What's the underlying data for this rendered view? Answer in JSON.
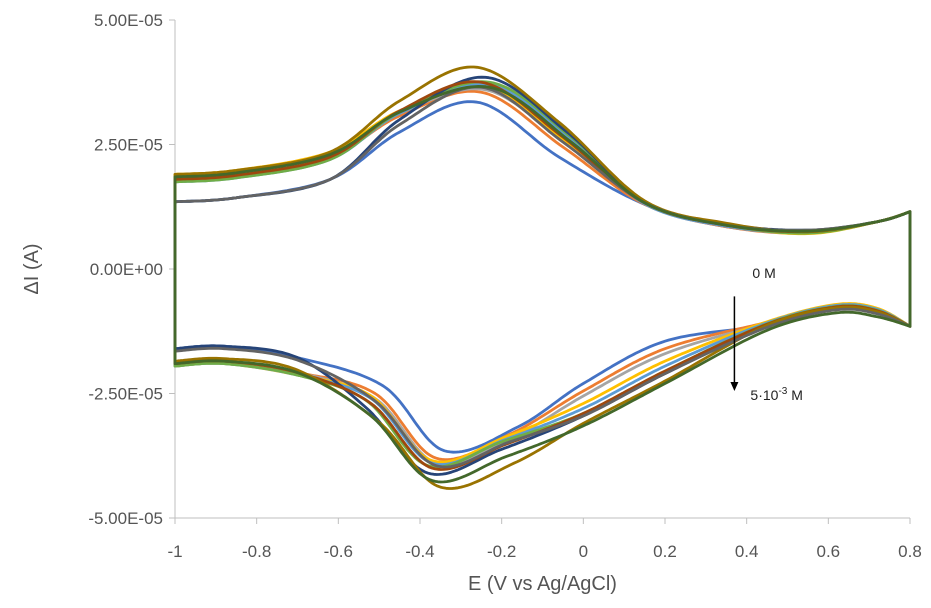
{
  "chart_data": {
    "type": "line",
    "xlabel": "E (V vs Ag/AgCl)",
    "ylabel": "ΔI (A)",
    "xlim": [
      -1,
      0.8
    ],
    "ylim": [
      -5e-05,
      5e-05
    ],
    "x_ticks": [
      -1,
      -0.8,
      -0.6,
      -0.4,
      -0.2,
      0,
      0.2,
      0.4,
      0.6,
      0.8
    ],
    "x_tick_labels": [
      "-1",
      "-0.8",
      "-0.6",
      "-0.4",
      "-0.2",
      "0",
      "0.2",
      "0.4",
      "0.6",
      "0.8"
    ],
    "y_ticks": [
      5e-05,
      2.5e-05,
      0,
      -2.5e-05,
      -5e-05
    ],
    "y_tick_labels": [
      "5.00E-05",
      "2.50E-05",
      "0.00E+00",
      "-2.50E-05",
      "-5.00E-05"
    ],
    "grid": false,
    "legend": "none",
    "annotations": {
      "start_label": "0 M",
      "end_label_base": "5·10",
      "end_label_exp": "-3",
      "end_label_unit": " M",
      "arrow_x": 0.37,
      "arrow_from_y": -5.5e-06,
      "arrow_to_y": -2.45e-05
    },
    "series": [
      {
        "color": "#4472C4",
        "ox_peak": [
          -0.26,
          3.35e-05
        ],
        "red_peak": [
          -0.34,
          -3.65e-05
        ],
        "start_upper": 1.35e-05,
        "start_lower": -1.6e-05,
        "upper_mid": [
          8.5e-06,
          7.5e-06
        ],
        "lower_mid": [
          -2.3e-05,
          -7.8e-06
        ]
      },
      {
        "color": "#ED7D31",
        "ox_peak": [
          -0.25,
          3.55e-05
        ],
        "red_peak": [
          -0.36,
          -3.8e-05
        ],
        "start_upper": 1.8e-05,
        "start_lower": -1.9e-05,
        "upper_mid": [
          8.5e-06,
          7.2e-06
        ],
        "lower_mid": [
          -2.45e-05,
          -7.2e-06
        ]
      },
      {
        "color": "#A5A5A5",
        "ox_peak": [
          -0.24,
          3.6e-05
        ],
        "red_peak": [
          -0.36,
          -3.9e-05
        ],
        "start_upper": 1.85e-05,
        "start_lower": -1.9e-05,
        "upper_mid": [
          8.8e-06,
          7.4e-06
        ],
        "lower_mid": [
          -2.55e-05,
          -7.4e-06
        ]
      },
      {
        "color": "#FFC000",
        "ox_peak": [
          -0.24,
          3.65e-05
        ],
        "red_peak": [
          -0.37,
          -3.85e-05
        ],
        "start_upper": 1.9e-05,
        "start_lower": -1.95e-05,
        "upper_mid": [
          8.8e-06,
          7.1e-06
        ],
        "lower_mid": [
          -2.7e-05,
          -7.1e-06
        ]
      },
      {
        "color": "#5B9BD5",
        "ox_peak": [
          -0.23,
          3.7e-05
        ],
        "red_peak": [
          -0.37,
          -3.9e-05
        ],
        "start_upper": 1.75e-05,
        "start_lower": -1.95e-05,
        "upper_mid": [
          8.6e-06,
          7.3e-06
        ],
        "lower_mid": [
          -2.8e-05,
          -7.3e-06
        ]
      },
      {
        "color": "#70AD47",
        "ox_peak": [
          -0.23,
          3.75e-05
        ],
        "red_peak": [
          -0.38,
          -3.95e-05
        ],
        "start_upper": 1.75e-05,
        "start_lower": -1.95e-05,
        "upper_mid": [
          8.8e-06,
          7.2e-06
        ],
        "lower_mid": [
          -2.9e-05,
          -7.5e-06
        ]
      },
      {
        "color": "#264478",
        "ox_peak": [
          -0.24,
          3.85e-05
        ],
        "red_peak": [
          -0.38,
          -4.1e-05
        ],
        "start_upper": 1.35e-05,
        "start_lower": -1.6e-05,
        "upper_mid": [
          9e-06,
          7.8e-06
        ],
        "lower_mid": [
          -2.95e-05,
          -7.8e-06
        ]
      },
      {
        "color": "#9E480E",
        "ox_peak": [
          -0.25,
          3.75e-05
        ],
        "red_peak": [
          -0.37,
          -4e-05
        ],
        "start_upper": 1.8e-05,
        "start_lower": -1.9e-05,
        "upper_mid": [
          8.8e-06,
          7.5e-06
        ],
        "lower_mid": [
          -2.9e-05,
          -7.6e-06
        ]
      },
      {
        "color": "#997300",
        "ox_peak": [
          -0.26,
          4.05e-05
        ],
        "red_peak": [
          -0.35,
          -4.38e-05
        ],
        "start_upper": 1.9e-05,
        "start_lower": -1.85e-05,
        "upper_mid": [
          9.2e-06,
          7.5e-06
        ],
        "lower_mid": [
          -3.1e-05,
          -7.8e-06
        ]
      },
      {
        "color": "#636363",
        "ox_peak": [
          -0.25,
          3.65e-05
        ],
        "red_peak": [
          -0.36,
          -3.95e-05
        ],
        "start_upper": 1.35e-05,
        "start_lower": -1.65e-05,
        "upper_mid": [
          8.8e-06,
          7.8e-06
        ],
        "lower_mid": [
          -2.95e-05,
          -8.2e-06
        ]
      },
      {
        "color": "#43682B",
        "ox_peak": [
          -0.23,
          3.65e-05
        ],
        "red_peak": [
          -0.37,
          -4.25e-05
        ],
        "start_upper": 1.85e-05,
        "start_lower": -1.9e-05,
        "upper_mid": [
          8.8e-06,
          7.6e-06
        ],
        "lower_mid": [
          -3.15e-05,
          -8.8e-06
        ]
      }
    ]
  }
}
